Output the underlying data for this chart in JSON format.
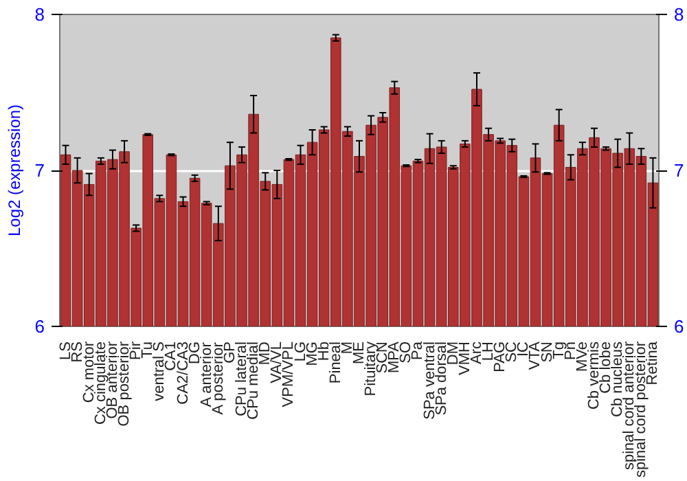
{
  "chart_data": {
    "type": "bar",
    "ylabel": "Log2 (expression)",
    "categories": [
      "LS",
      "RS",
      "Cx motor",
      "Cx cingulate",
      "OB anterior",
      "OB posterior",
      "Pir",
      "Tu",
      "ventral S",
      "CA1",
      "CA2/CA3",
      "DG",
      "A anterior",
      "A posterior",
      "GP",
      "CPu lateral",
      "CPu medial",
      "MD",
      "VA/VL",
      "VPM/VPL",
      "LG",
      "MG",
      "Hb",
      "Pineal",
      "M",
      "ME",
      "Pituitary",
      "SCN",
      "MPA",
      "SO",
      "Pa",
      "SPa ventral",
      "SPa dorsal",
      "DM",
      "VMH",
      "Arc",
      "LH",
      "PAG",
      "SC",
      "IC",
      "VTA",
      "SN",
      "Tg",
      "Pn",
      "MVe",
      "Cb vermis",
      "Cb lobe",
      "Cb nucleus",
      "spinal cord anterior",
      "spinal cord posterior",
      "Retina"
    ],
    "values": [
      7.1,
      7.0,
      6.91,
      7.06,
      7.07,
      7.12,
      6.63,
      7.23,
      6.82,
      7.1,
      6.8,
      6.95,
      6.79,
      6.66,
      7.03,
      7.1,
      7.36,
      6.93,
      6.91,
      7.07,
      7.1,
      7.18,
      7.26,
      7.85,
      7.25,
      7.09,
      7.29,
      7.34,
      7.53,
      7.03,
      7.06,
      7.14,
      7.15,
      7.02,
      7.17,
      7.52,
      7.23,
      7.19,
      7.16,
      6.96,
      7.08,
      6.98,
      7.29,
      7.02,
      7.14,
      7.21,
      7.14,
      7.11,
      7.14,
      7.09,
      6.92
    ],
    "errors": [
      0.06,
      0.08,
      0.07,
      0.02,
      0.06,
      0.07,
      0.02,
      0.005,
      0.02,
      0.005,
      0.03,
      0.02,
      0.01,
      0.11,
      0.15,
      0.05,
      0.12,
      0.055,
      0.09,
      0.005,
      0.06,
      0.08,
      0.02,
      0.02,
      0.03,
      0.1,
      0.06,
      0.03,
      0.04,
      0.005,
      0.01,
      0.095,
      0.04,
      0.01,
      0.02,
      0.105,
      0.04,
      0.015,
      0.04,
      0.005,
      0.09,
      0.005,
      0.1,
      0.08,
      0.04,
      0.06,
      0.01,
      0.09,
      0.1,
      0.05,
      0.16
    ],
    "color": "#b03232",
    "ylim": [
      6,
      8
    ],
    "yticks": [
      6,
      7,
      8
    ],
    "y2lim": [
      6,
      8
    ],
    "y2ticks": [
      6,
      7,
      8
    ],
    "grid": "y"
  }
}
